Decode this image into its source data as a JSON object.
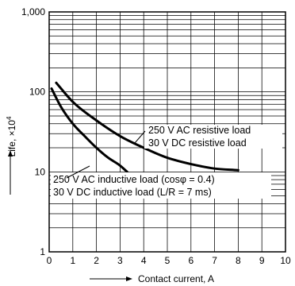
{
  "chart_data": {
    "type": "line",
    "title": "",
    "xlabel": "Contact current, A",
    "ylabel": "Life, ×10",
    "ylabel_exponent": "4",
    "xlim": [
      0,
      10
    ],
    "ylim": [
      1,
      1000
    ],
    "yscale": "log",
    "x_ticks": [
      "0",
      "1",
      "2",
      "3",
      "4",
      "5",
      "6",
      "7",
      "8",
      "9",
      "10"
    ],
    "y_ticks": [
      "1",
      "10",
      "100",
      "1,000"
    ],
    "grid": true,
    "series": [
      {
        "name": "250 V AC resistive load / 30 V DC resistive load",
        "x": [
          0.3,
          1,
          2,
          3,
          4,
          5,
          6,
          7,
          8
        ],
        "y": [
          130,
          75,
          44,
          28,
          20,
          15,
          12.5,
          11,
          10.5
        ]
      },
      {
        "name": "250 V AC inductive load (cosφ = 0.4) / 30 V DC inductive load (L/R = 7 ms)",
        "x": [
          0.1,
          0.5,
          1,
          1.5,
          2,
          2.5,
          3,
          3.3
        ],
        "y": [
          110,
          65,
          40,
          28,
          20,
          15,
          12,
          10
        ]
      }
    ],
    "annotations": [
      "250 V AC resistive load",
      "30 V DC resistive load",
      "250 V AC inductive load (cosφ = 0.4)",
      "30 V DC  inductive load (L/R = 7 ms)"
    ]
  }
}
